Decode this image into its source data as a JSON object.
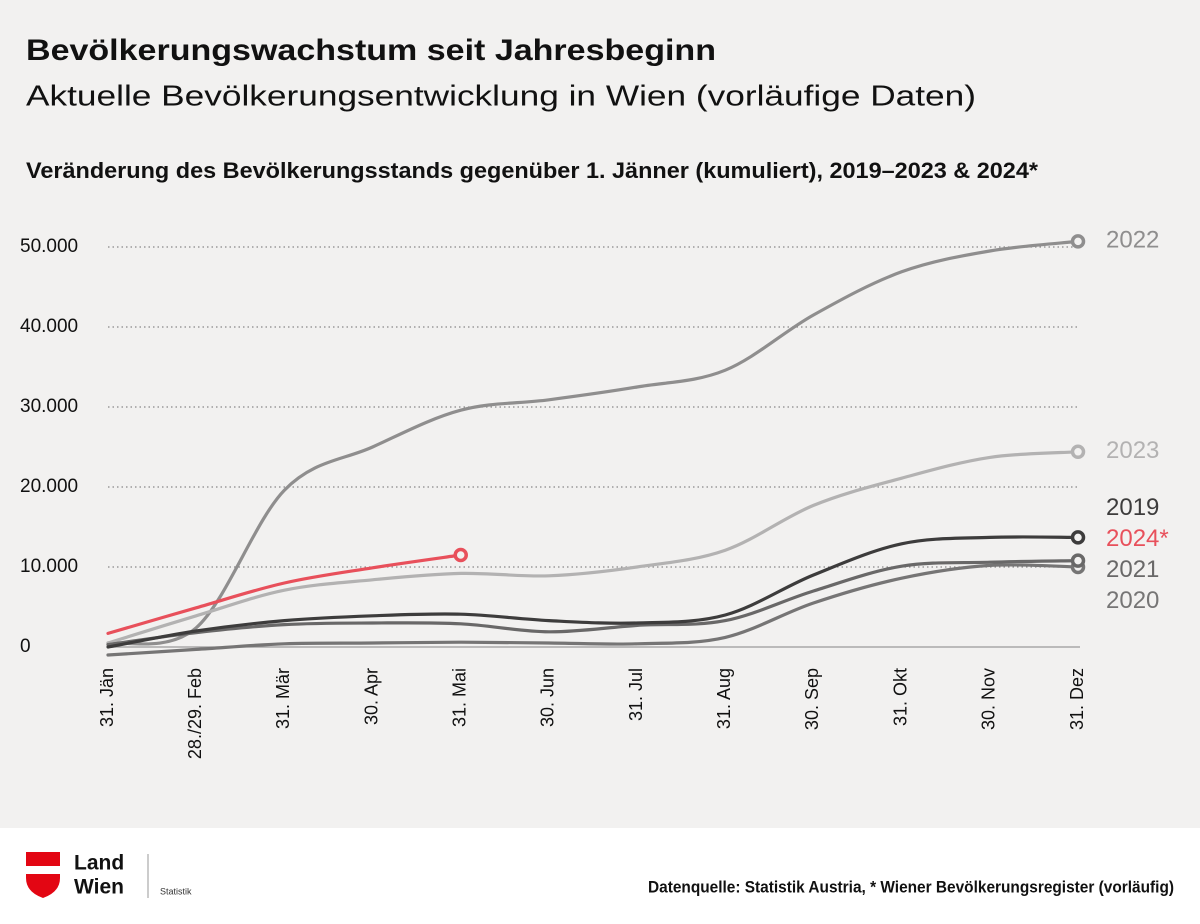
{
  "chart_data": {
    "type": "line",
    "title": "Bevölkerungswachstum seit Jahresbeginn",
    "subtitle": "Aktuelle Bevölkerungsentwicklung in Wien (vorläufige Daten)",
    "chart_title": "Veränderung des Bevölkerungsstands gegenüber 1. Jänner (kumuliert), 2019–2023 & 2024*",
    "categories": [
      "31. Jän",
      "28./29. Feb",
      "31. Mär",
      "30. Apr",
      "31. Mai",
      "30. Jun",
      "31. Jul",
      "31. Aug",
      "30. Sep",
      "31. Okt",
      "30. Nov",
      "31. Dez"
    ],
    "ylim": [
      -2000,
      52000
    ],
    "yticks": [
      0,
      {
        "value": 10000,
        "label": "10.000"
      },
      {
        "value": 20000,
        "label": "20.000"
      },
      {
        "value": 30000,
        "label": "30.000"
      },
      {
        "value": 40000,
        "label": "40.000"
      },
      {
        "value": 50000,
        "label": "50.000"
      }
    ],
    "grid": true,
    "series": [
      {
        "name": "2022",
        "color": "#8f8e8e",
        "values": [
          500,
          2400,
          19600,
          25000,
          29600,
          30900,
          32500,
          34600,
          41500,
          46900,
          49500,
          50700
        ]
      },
      {
        "name": "2023",
        "color": "#b3b2b2",
        "values": [
          500,
          3900,
          7100,
          8400,
          9200,
          8900,
          10000,
          12100,
          17700,
          21100,
          23700,
          24400
        ]
      },
      {
        "name": "2020",
        "color": "#767575",
        "values": [
          -1000,
          -300,
          400,
          500,
          600,
          500,
          400,
          1200,
          5500,
          8600,
          10200,
          10000
        ]
      },
      {
        "name": "2021",
        "color": "#696868",
        "values": [
          300,
          1800,
          2800,
          3000,
          2900,
          1900,
          2700,
          3300,
          7000,
          10100,
          10600,
          10800
        ]
      },
      {
        "name": "2019",
        "color": "#3d3c3c",
        "values": [
          0,
          2000,
          3300,
          3900,
          4100,
          3300,
          3000,
          4000,
          9000,
          12900,
          13700,
          13700
        ]
      },
      {
        "name": "2024*",
        "color": "#e8505b",
        "values": [
          1700,
          4900,
          8000,
          9900,
          11500,
          null,
          null,
          null,
          null,
          null,
          null,
          null
        ]
      }
    ]
  },
  "footer": {
    "logo_line1": "Land",
    "logo_line2": "Wien",
    "logo_unit": "Statistik",
    "source": "Datenquelle: Statistik Austria, * Wiener Bevölkerungsregister (vorläufig)"
  }
}
